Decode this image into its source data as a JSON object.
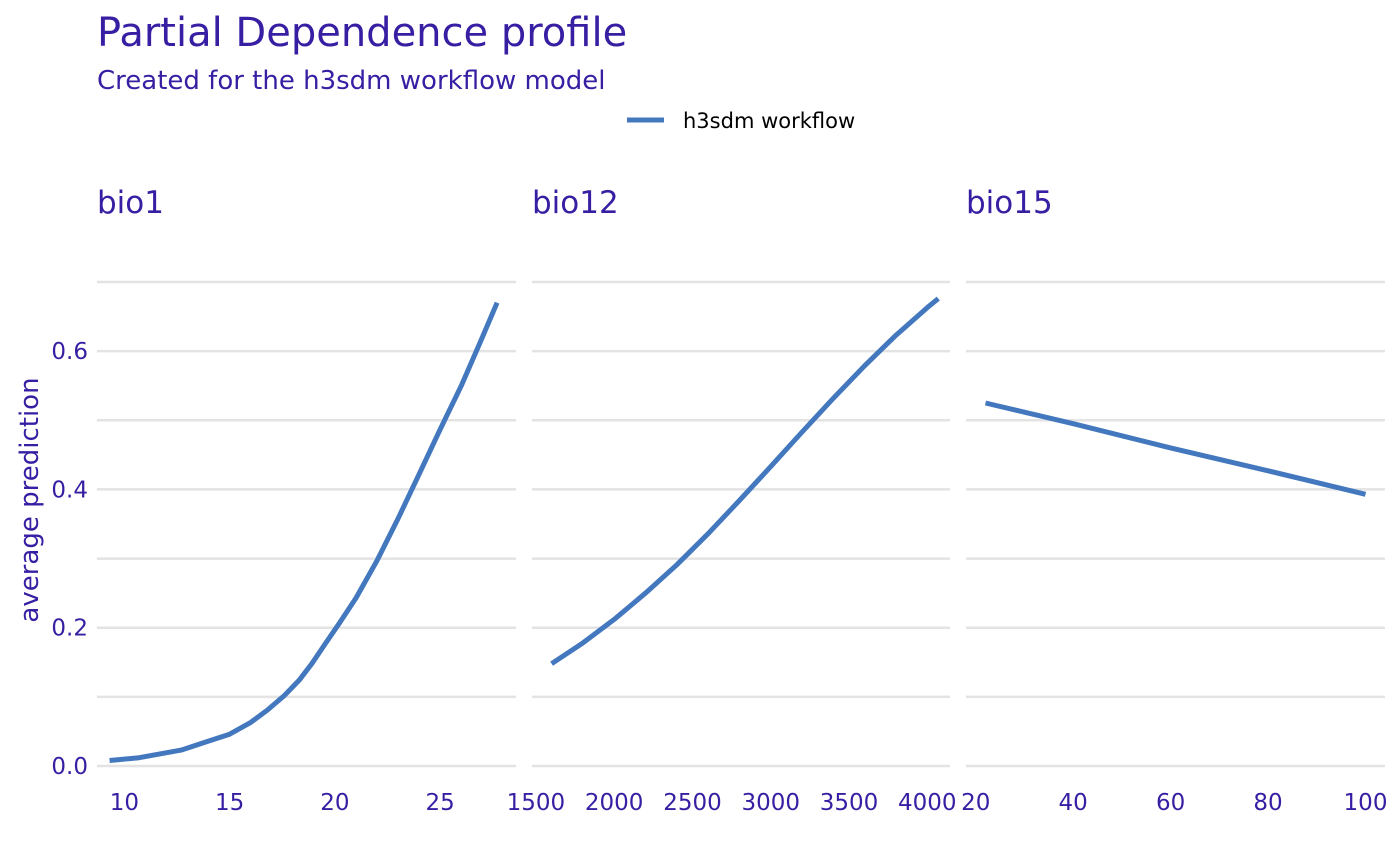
{
  "header": {
    "title": "Partial Dependence profile",
    "subtitle": "Created for the h3sdm workflow model"
  },
  "chart_data": {
    "type": "line",
    "ylabel": "average prediction",
    "ylim": [
      0,
      0.7
    ],
    "yticks": [
      0.0,
      0.2,
      0.4,
      0.6
    ],
    "ytick_labels": [
      "0.0",
      "0.2",
      "0.4",
      "0.6"
    ],
    "yminor": [
      0.1,
      0.3,
      0.5,
      0.7
    ],
    "grid": true,
    "legend_position": "top",
    "legend": [
      {
        "name": "h3sdm workflow",
        "color": "#4378bf"
      }
    ],
    "panels": [
      {
        "name": "bio1",
        "xlim": [
          8.7,
          28.6
        ],
        "xticks": [
          10,
          15,
          20,
          25
        ],
        "xtick_labels": [
          "10",
          "15",
          "20",
          "25"
        ],
        "series": [
          {
            "name": "h3sdm workflow",
            "x": [
              9.3,
              10.7,
              12.7,
              13.9,
              15.0,
              16.0,
              16.8,
              17.6,
              18.3,
              18.9,
              19.5,
              20.2,
              21.0,
              22.0,
              23.0,
              24.0,
              25.0,
              26.0,
              26.9,
              27.7
            ],
            "y": [
              0.008,
              0.012,
              0.023,
              0.035,
              0.046,
              0.063,
              0.081,
              0.102,
              0.124,
              0.148,
              0.175,
              0.206,
              0.243,
              0.297,
              0.358,
              0.422,
              0.487,
              0.55,
              0.613,
              0.67
            ]
          }
        ]
      },
      {
        "name": "bio12",
        "xlim": [
          1475,
          4145
        ],
        "xticks": [
          1500,
          2000,
          2500,
          3000,
          3500,
          4000
        ],
        "xtick_labels": [
          "1500",
          "2000",
          "2500",
          "3000",
          "3500",
          "4000"
        ],
        "series": [
          {
            "name": "h3sdm workflow",
            "x": [
              1600,
              1800,
              2000,
              2200,
              2400,
              2600,
              2800,
              3000,
              3200,
              3400,
              3600,
              3800,
              4000,
              4070
            ],
            "y": [
              0.148,
              0.178,
              0.212,
              0.25,
              0.291,
              0.336,
              0.384,
              0.433,
              0.483,
              0.532,
              0.579,
              0.623,
              0.663,
              0.676
            ]
          }
        ]
      },
      {
        "name": "bio15",
        "xlim": [
          18,
          104
        ],
        "xticks": [
          20,
          40,
          60,
          80,
          100
        ],
        "xtick_labels": [
          "20",
          "40",
          "60",
          "80",
          "100"
        ],
        "series": [
          {
            "name": "h3sdm workflow",
            "x": [
              22,
              40,
              60,
              80,
              100
            ],
            "y": [
              0.525,
              0.495,
              0.46,
              0.427,
              0.393
            ]
          }
        ]
      }
    ]
  }
}
